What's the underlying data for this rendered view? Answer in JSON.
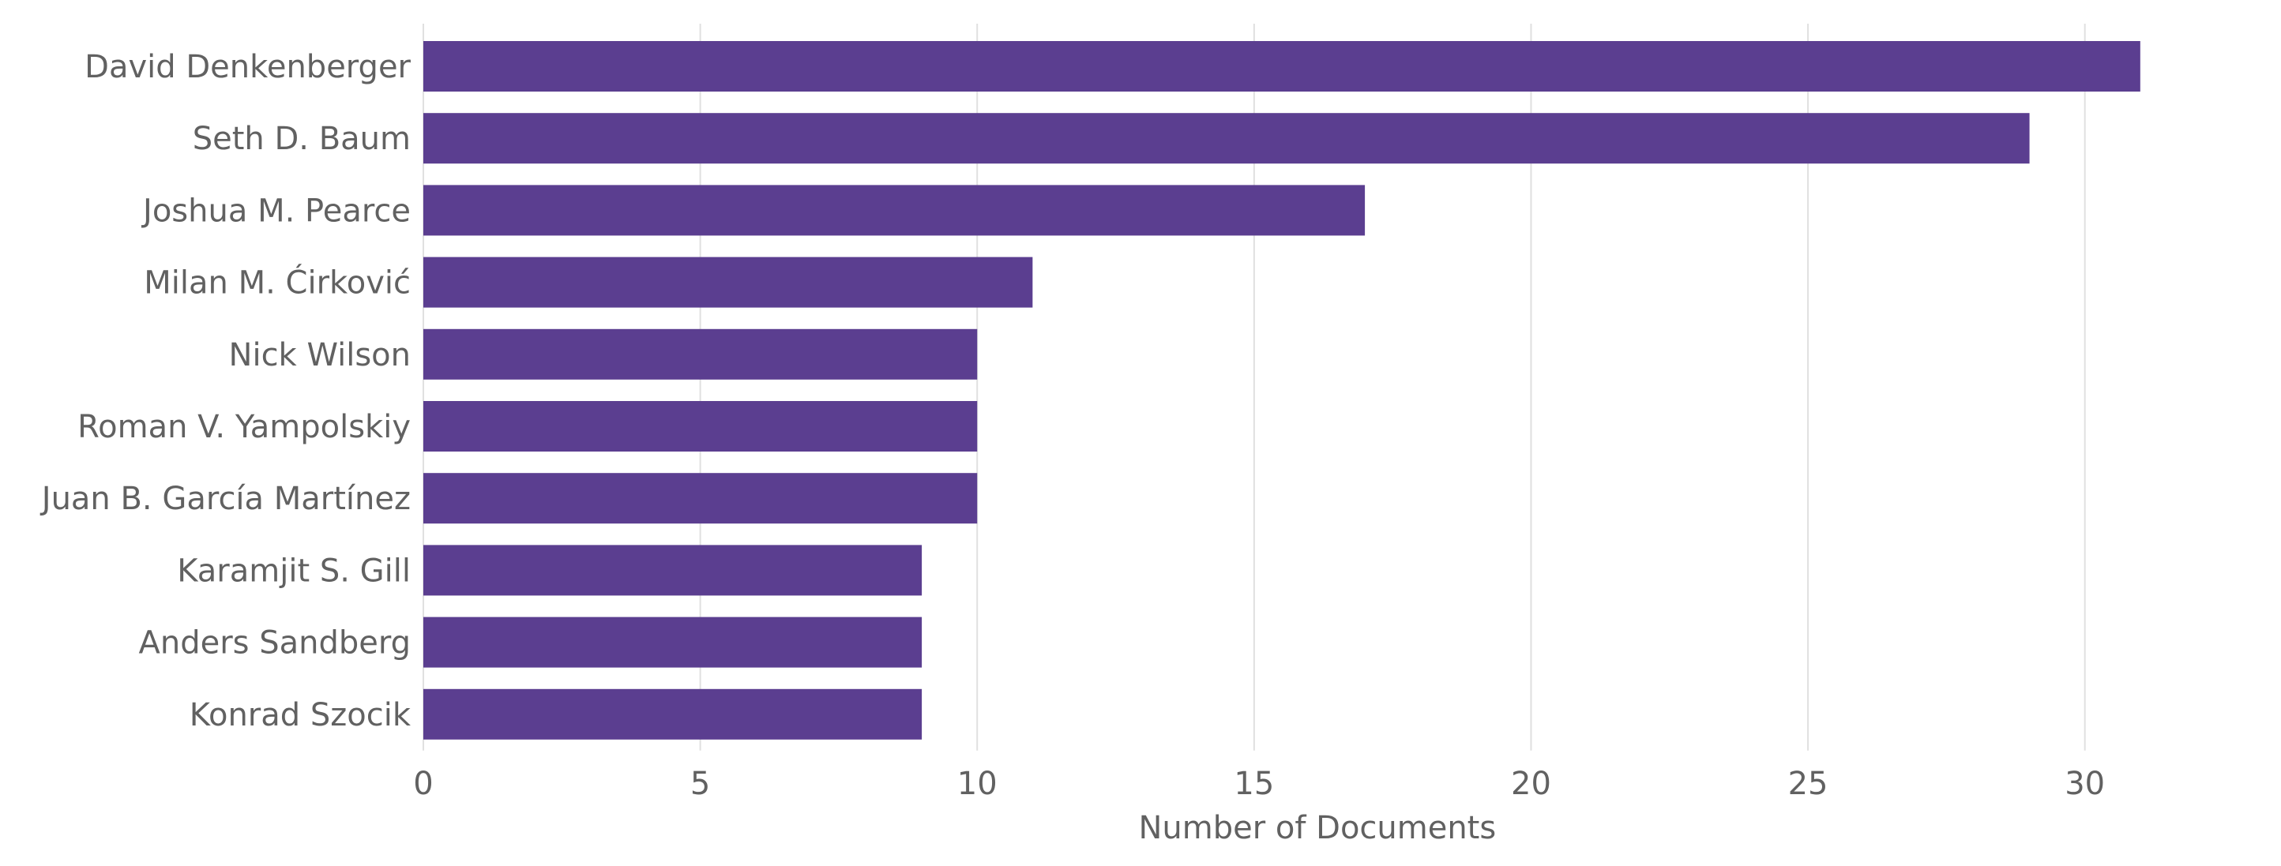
{
  "chart_data": {
    "type": "bar",
    "orientation": "horizontal",
    "categories": [
      "David Denkenberger",
      "Seth D. Baum",
      "Joshua M. Pearce",
      "Milan M. Ćirković",
      "Nick Wilson",
      "Roman V. Yampolskiy",
      "Juan B. García Martínez",
      "Karamjit S. Gill",
      "Anders Sandberg",
      "Konrad Szocik"
    ],
    "values": [
      31,
      29,
      17,
      11,
      10,
      10,
      10,
      9,
      9,
      9
    ],
    "title": "",
    "xlabel": "Number of Documents",
    "ylabel": "",
    "xlim": [
      0,
      32.5
    ],
    "xticks": [
      0,
      5,
      10,
      15,
      20,
      25,
      30
    ],
    "grid": "vertical",
    "legend": "none",
    "colors": {
      "bar": "#5b3e90",
      "grid": "#e0e0e0",
      "text": "#616161"
    }
  }
}
